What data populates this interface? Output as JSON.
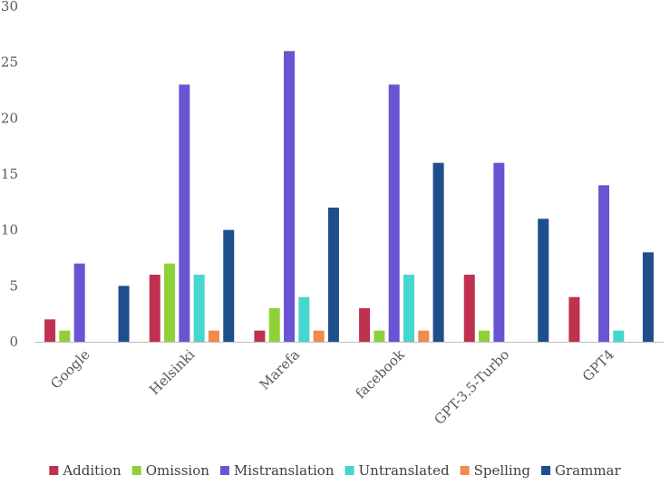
{
  "chart_data": {
    "type": "bar",
    "categories": [
      "Google",
      "Helsinki",
      "Marefa",
      "facebook",
      "GPT-3.5-Turbo",
      "GPT4"
    ],
    "series": [
      {
        "name": "Addition",
        "color": "#c0304f",
        "values": [
          2,
          6,
          1,
          3,
          6,
          4
        ]
      },
      {
        "name": "Omission",
        "color": "#8ed13a",
        "values": [
          1,
          7,
          3,
          1,
          1,
          0
        ]
      },
      {
        "name": "Mistranslation",
        "color": "#6a54d4",
        "values": [
          7,
          23,
          26,
          23,
          16,
          14
        ]
      },
      {
        "name": "Untranslated",
        "color": "#45d6cf",
        "values": [
          0,
          6,
          4,
          6,
          0,
          1
        ]
      },
      {
        "name": "Spelling",
        "color": "#f28a4c",
        "values": [
          0,
          1,
          1,
          1,
          0,
          0
        ]
      },
      {
        "name": "Grammar",
        "color": "#1f4e8c",
        "values": [
          5,
          10,
          12,
          16,
          11,
          8
        ]
      }
    ],
    "y_ticks": [
      0,
      5,
      10,
      15,
      20,
      25,
      30
    ],
    "ylim": [
      0,
      30
    ],
    "title": "",
    "xlabel": "",
    "ylabel": "",
    "grid": false,
    "legend_position": "bottom"
  }
}
